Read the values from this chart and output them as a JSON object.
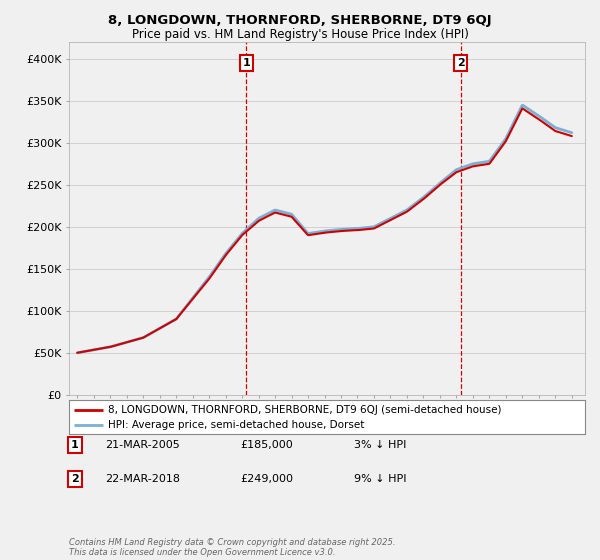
{
  "title": "8, LONGDOWN, THORNFORD, SHERBORNE, DT9 6QJ",
  "subtitle": "Price paid vs. HM Land Registry's House Price Index (HPI)",
  "legend_line1": "8, LONGDOWN, THORNFORD, SHERBORNE, DT9 6QJ (semi-detached house)",
  "legend_line2": "HPI: Average price, semi-detached house, Dorset",
  "annotation1_label": "1",
  "annotation1_date": "21-MAR-2005",
  "annotation1_price": "£185,000",
  "annotation1_note": "3% ↓ HPI",
  "annotation2_label": "2",
  "annotation2_date": "22-MAR-2018",
  "annotation2_price": "£249,000",
  "annotation2_note": "9% ↓ HPI",
  "footer": "Contains HM Land Registry data © Crown copyright and database right 2025.\nThis data is licensed under the Open Government Licence v3.0.",
  "price_color": "#cc0000",
  "hpi_color": "#7ab0d4",
  "background_color": "#f0f0f0",
  "grid_color": "#cccccc",
  "ylim": [
    0,
    420000
  ],
  "yticks": [
    0,
    50000,
    100000,
    150000,
    200000,
    250000,
    300000,
    350000,
    400000
  ],
  "ytick_labels": [
    "£0",
    "£50K",
    "£100K",
    "£150K",
    "£200K",
    "£250K",
    "£300K",
    "£350K",
    "£400K"
  ],
  "ann1_x": 2005.25,
  "ann2_x": 2018.25,
  "xmin": 1994.5,
  "xmax": 2025.8,
  "key_years_hpi": [
    1995,
    1997,
    1999,
    2001,
    2003,
    2004,
    2005,
    2006,
    2007,
    2008,
    2009,
    2010,
    2011,
    2012,
    2013,
    2014,
    2015,
    2016,
    2017,
    2018,
    2019,
    2020,
    2021,
    2022,
    2023,
    2024,
    2025
  ],
  "key_vals_hpi": [
    50000,
    57000,
    68000,
    90000,
    140000,
    168000,
    192000,
    210000,
    220000,
    215000,
    192000,
    195000,
    197000,
    198000,
    200000,
    210000,
    220000,
    235000,
    252000,
    268000,
    275000,
    278000,
    305000,
    345000,
    332000,
    318000,
    312000
  ],
  "key_years_price": [
    1995,
    1997,
    1999,
    2001,
    2003,
    2004,
    2005,
    2006,
    2007,
    2008,
    2009,
    2010,
    2011,
    2012,
    2013,
    2014,
    2015,
    2016,
    2017,
    2018,
    2019,
    2020,
    2021,
    2022,
    2023,
    2024,
    2025
  ],
  "key_vals_price": [
    50000,
    57000,
    68000,
    90000,
    138000,
    166000,
    190000,
    207000,
    217000,
    212000,
    190000,
    193000,
    195000,
    196000,
    198000,
    208000,
    218000,
    233000,
    250000,
    265000,
    272000,
    275000,
    302000,
    341000,
    328000,
    314000,
    308000
  ]
}
